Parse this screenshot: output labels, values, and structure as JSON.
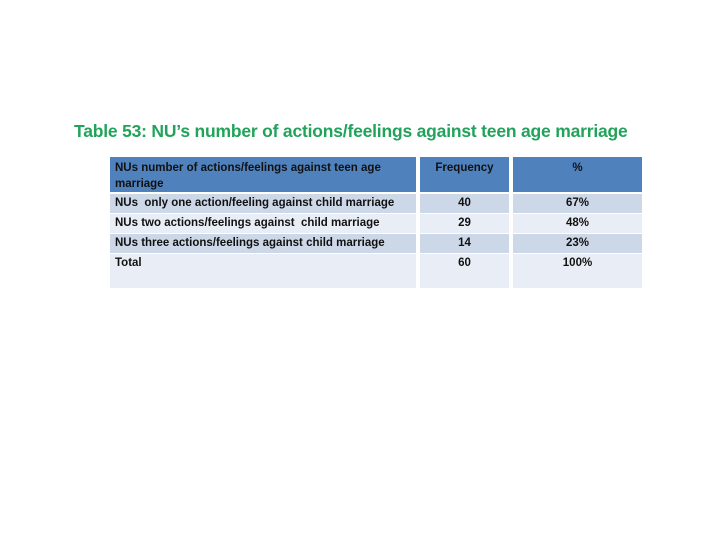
{
  "page": {
    "background": "#ffffff"
  },
  "title": {
    "text": "Table 53: NU’s number of actions/feelings against teen age marriage",
    "color": "#22a35b"
  },
  "table": {
    "colors": {
      "header_bg": "#4f81bd",
      "banded_row_bg": "#ccd7e7",
      "plain_row_bg": "#e9eef6",
      "grid_lines": "#ffffff",
      "text": "#111111"
    },
    "header": {
      "category": "NUs number of actions/feelings against teen age marriage",
      "frequency": "Frequency",
      "percent": "%"
    },
    "rows": [
      {
        "label": "NUs  only one action/feeling against child marriage",
        "frequency": "40",
        "percent": "67%"
      },
      {
        "label": "NUs two actions/feelings against  child marriage",
        "frequency": "29",
        "percent": "48%"
      },
      {
        "label": "NUs three actions/feelings against child marriage",
        "frequency": "14",
        "percent": "23%"
      },
      {
        "label": "Total",
        "frequency": "60",
        "percent": "100%"
      }
    ]
  }
}
